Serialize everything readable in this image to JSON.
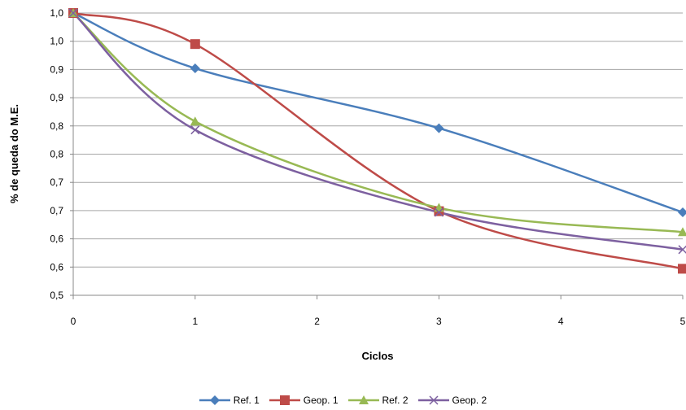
{
  "chart_data": {
    "type": "line",
    "title": "",
    "xlabel": "Ciclos",
    "ylabel": "% de queda do M.E.",
    "x": [
      0,
      1,
      3,
      5
    ],
    "xlim": [
      0,
      5
    ],
    "xticks": [
      "0",
      "1",
      "2",
      "3",
      "4",
      "5"
    ],
    "ylim": [
      0.5,
      1.0
    ],
    "yticks": [
      "0,5",
      "0,6",
      "0,6",
      "0,7",
      "0,7",
      "0,8",
      "0,8",
      "0,9",
      "0,9",
      "1,0",
      "1,0"
    ],
    "grid": true,
    "legend_position": "bottom",
    "series": [
      {
        "name": "Ref. 1",
        "color": "#4a7ebb",
        "marker": "diamond",
        "values": [
          1.0,
          0.902,
          0.796,
          0.647
        ]
      },
      {
        "name": "Geop. 1",
        "color": "#be4b48",
        "marker": "square",
        "values": [
          1.0,
          0.945,
          0.649,
          0.547
        ]
      },
      {
        "name": "Ref. 2",
        "color": "#98b954",
        "marker": "triangle",
        "values": [
          1.0,
          0.808,
          0.655,
          0.612
        ]
      },
      {
        "name": "Geop. 2",
        "color": "#7d60a0",
        "marker": "x",
        "values": [
          1.0,
          0.793,
          0.647,
          0.581
        ]
      }
    ]
  }
}
